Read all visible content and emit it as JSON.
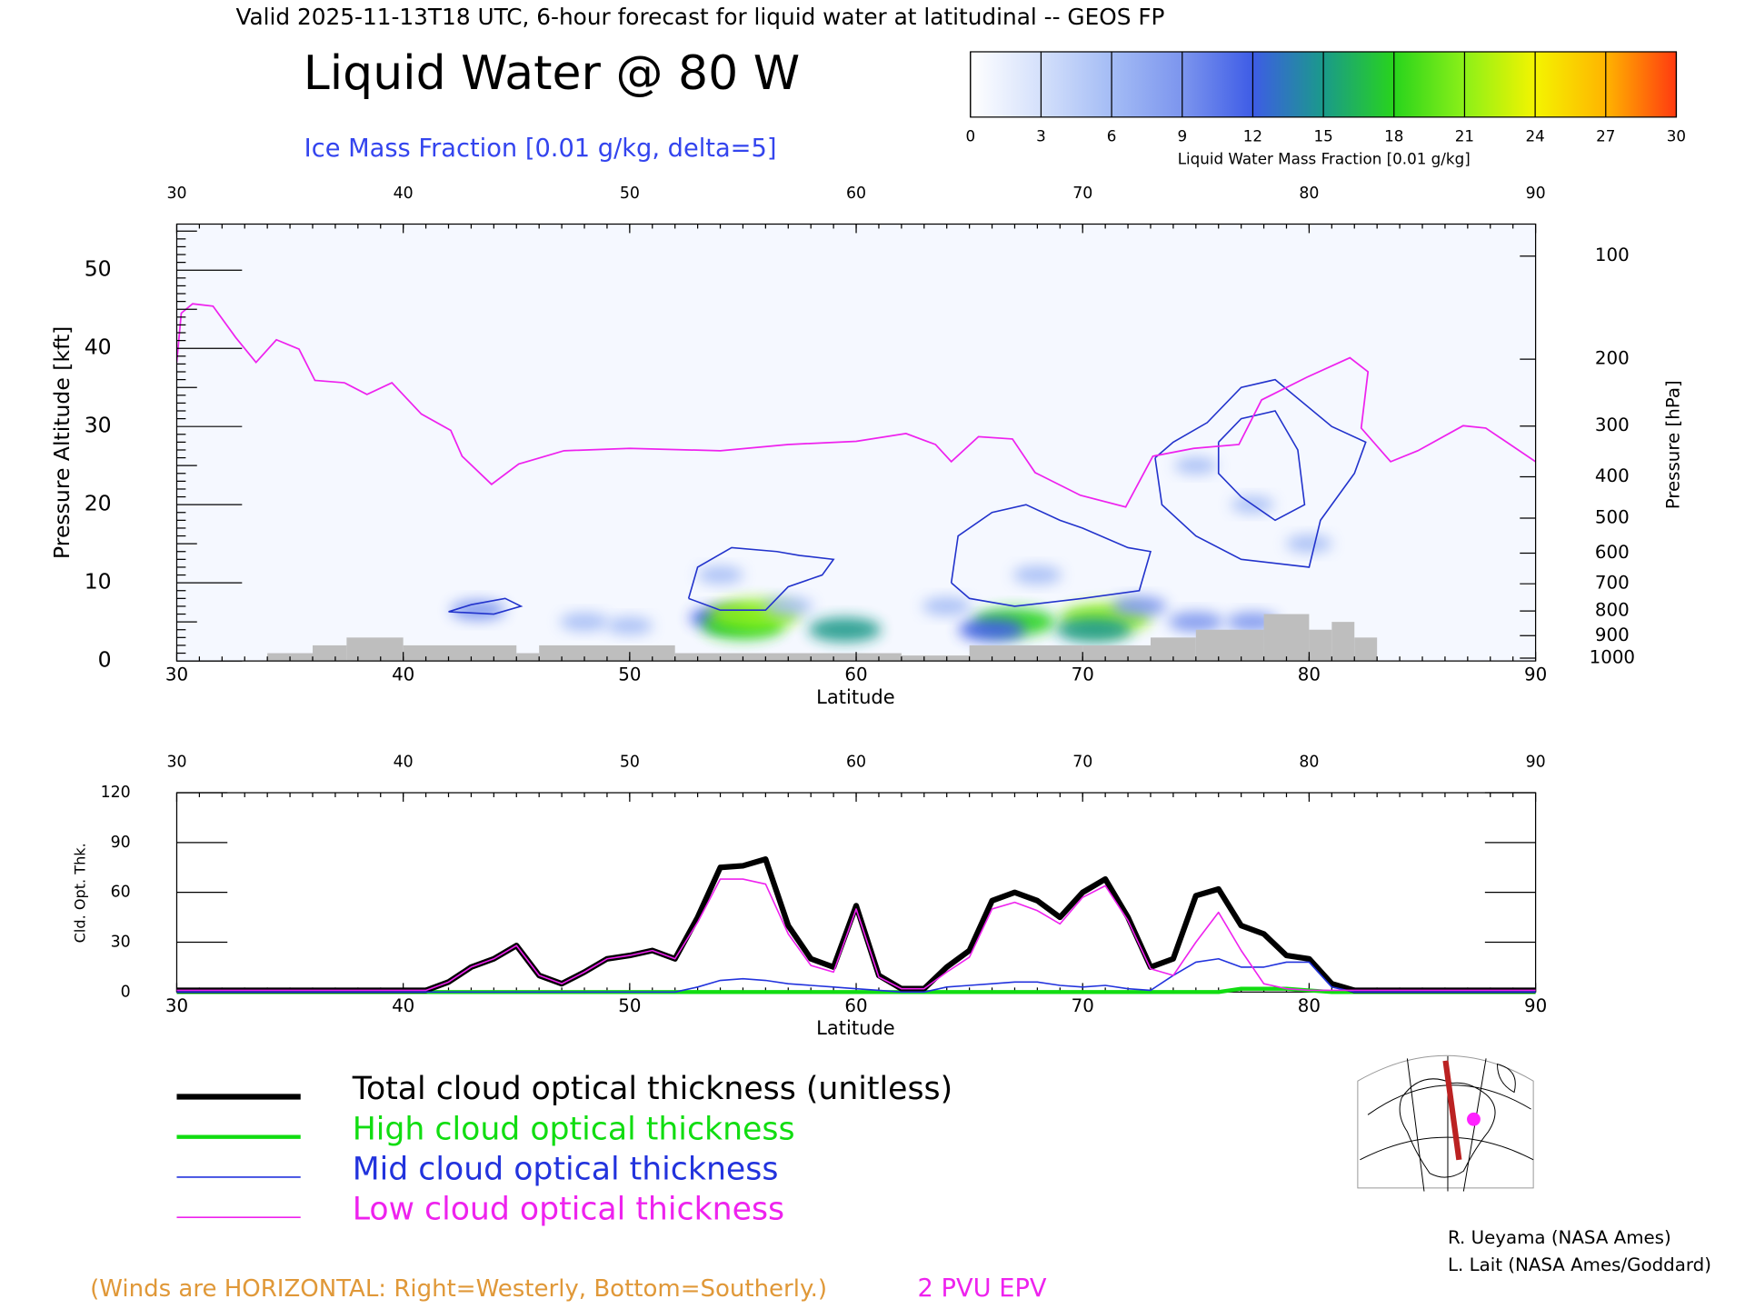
{
  "header": {
    "title": "Valid 2025-11-13T18 UTC, 6-hour forecast for liquid water at latitudinal -- GEOS FP"
  },
  "chart_data": [
    {
      "type": "cross-section",
      "title": "Liquid Water @ 80 W",
      "subtitle": "Ice Mass Fraction [0.01 g/kg, delta=5]",
      "xlabel": "Latitude",
      "ylabel": "Pressure Altitude [kft]",
      "y2label": "Pressure [hPa]",
      "xlim": [
        30,
        90
      ],
      "xticks": [
        30,
        40,
        50,
        60,
        70,
        80,
        90
      ],
      "ylim": [
        0,
        55.9
      ],
      "yticks": [
        0,
        10,
        20,
        30,
        40,
        50
      ],
      "y2scale": "pressure-altitude",
      "y2ticks": [
        100,
        200,
        300,
        400,
        500,
        600,
        700,
        800,
        900,
        1000
      ],
      "colorbar": {
        "label": "Liquid Water Mass Fraction [0.01 g/kg]",
        "ticks": [
          0,
          3,
          6,
          9,
          12,
          15,
          18,
          21,
          24,
          27,
          30
        ],
        "colors": [
          "#ffffff",
          "#d4e0fb",
          "#a4bcf5",
          "#7c95ee",
          "#3e5ce6",
          "#1a9a8a",
          "#28d41c",
          "#8cf018",
          "#f4f400",
          "#ffb400",
          "#ff3a10"
        ]
      },
      "liquid_water": {
        "x": [
          43.3,
          48,
          50,
          54,
          55,
          55.5,
          57,
          59.5,
          54,
          67,
          66,
          68,
          71,
          70.5,
          72.5,
          75,
          77.5,
          77.5,
          75,
          80,
          64
        ],
        "y": [
          6.5,
          5,
          4.5,
          5.5,
          4.5,
          6,
          7,
          4,
          11,
          5,
          4,
          11,
          5.5,
          4,
          7,
          5,
          5,
          20,
          25,
          15,
          7
        ],
        "values": [
          8,
          6,
          5,
          10,
          17,
          20,
          6,
          14,
          5,
          17,
          12,
          6,
          20,
          15,
          8,
          8,
          7,
          4,
          4,
          5,
          6
        ]
      },
      "ice_color": "#2233cc",
      "ice_contours": [
        {
          "x": [
            52.6,
            53,
            54.5,
            56.5,
            57.5,
            59,
            58.5,
            57,
            56,
            54,
            52.6
          ],
          "y": [
            8,
            12,
            14.5,
            14,
            13.5,
            13,
            11,
            9.5,
            6.5,
            6.5,
            8
          ]
        },
        {
          "x": [
            64.2,
            64.5,
            66,
            67.5,
            69,
            70,
            72,
            73,
            72.5,
            70,
            67,
            65,
            64.2
          ],
          "y": [
            10,
            16,
            19,
            20,
            18,
            17,
            14.5,
            14,
            9,
            8,
            7,
            8,
            10
          ]
        },
        {
          "x": [
            73.2,
            74,
            75.5,
            77,
            78.5,
            81,
            82.5,
            82,
            80.5,
            80,
            77,
            75,
            73.5,
            73.2
          ],
          "y": [
            26,
            28,
            30.5,
            35,
            36,
            30,
            28,
            24,
            18,
            12,
            13,
            16,
            20,
            26
          ]
        },
        {
          "x": [
            76,
            77,
            78.5,
            79.5,
            79.8,
            78.5,
            77,
            76,
            76
          ],
          "y": [
            28,
            31,
            32,
            27,
            20,
            18,
            21,
            24,
            28
          ]
        },
        {
          "x": [
            42,
            43,
            44.5,
            45.2,
            44,
            42
          ],
          "y": [
            6.3,
            7.2,
            8,
            7,
            6,
            6.3
          ]
        }
      ],
      "terrain": {
        "color": "#bebebe",
        "bins": [
          34,
          36,
          37.5,
          40,
          45,
          46,
          52,
          62,
          65,
          70,
          73,
          75,
          78,
          80,
          81,
          82,
          83
        ],
        "values": [
          1,
          2,
          3,
          2,
          1,
          2,
          1,
          0.7,
          2,
          2,
          3,
          4,
          6,
          4,
          5,
          3
        ]
      },
      "epv": {
        "name": "2 PVU EPV",
        "color": "#ee22ee",
        "x": [
          30,
          30.2,
          30.7,
          31.6,
          32.6,
          33.5,
          34.4,
          35.4,
          36.1,
          37.4,
          38.4,
          39.5,
          40.8,
          42.1,
          42.6,
          43.9,
          45.1,
          47.1,
          50,
          54,
          57,
          60,
          62.2,
          63.5,
          64.2,
          65.4,
          66.9,
          67.9,
          69.9,
          71.9,
          73.1,
          74.9,
          76.9,
          77.9,
          79.9,
          81.8,
          82.6,
          82.3,
          83.6,
          84.8,
          86.8,
          87.8,
          90
        ],
        "y": [
          38.2,
          44.5,
          45.7,
          45.4,
          41.4,
          38.2,
          41.1,
          39.9,
          35.9,
          35.6,
          34.1,
          35.6,
          31.6,
          29.5,
          26.2,
          22.6,
          25.2,
          26.9,
          27.2,
          26.9,
          27.7,
          28.1,
          29.1,
          27.7,
          25.5,
          28.7,
          28.4,
          24.1,
          21.2,
          19.7,
          26.2,
          27.2,
          27.7,
          33.4,
          36.3,
          38.8,
          37,
          29.8,
          25.5,
          26.9,
          30.1,
          29.8,
          25.5
        ]
      }
    },
    {
      "type": "line",
      "xlabel": "Latitude",
      "ylabel": "Cld. Opt. Thk.",
      "xlim": [
        30,
        90
      ],
      "xticks": [
        30,
        40,
        50,
        60,
        70,
        80,
        90
      ],
      "ylim": [
        0,
        120
      ],
      "yticks": [
        0,
        30,
        60,
        90,
        120
      ],
      "x": [
        30,
        31,
        32,
        33,
        34,
        35,
        36,
        37,
        38,
        39,
        40,
        41,
        42,
        43,
        44,
        45,
        46,
        47,
        48,
        49,
        50,
        51,
        52,
        53,
        54,
        55,
        56,
        57,
        58,
        59,
        60,
        61,
        62,
        63,
        64,
        65,
        66,
        67,
        68,
        69,
        70,
        71,
        72,
        73,
        74,
        75,
        76,
        77,
        78,
        79,
        80,
        81,
        82,
        83,
        84,
        85,
        86,
        87,
        88,
        89,
        90
      ],
      "series": [
        {
          "name": "Total cloud optical thickness (unitless)",
          "color": "#000000",
          "width": 5,
          "values": [
            1,
            1,
            1,
            1,
            1,
            1,
            1,
            1,
            1,
            1,
            1,
            1,
            6,
            15,
            20,
            28,
            10,
            5,
            12,
            20,
            22,
            25,
            20,
            45,
            75,
            76,
            80,
            40,
            20,
            15,
            52,
            10,
            2,
            2,
            15,
            25,
            55,
            60,
            55,
            45,
            60,
            68,
            45,
            15,
            20,
            58,
            62,
            40,
            35,
            22,
            20,
            5,
            1,
            1,
            1,
            1,
            1,
            1,
            1,
            1,
            1
          ]
        },
        {
          "name": "High cloud optical thickness",
          "color": "#11dd11",
          "width": 3.5,
          "values": [
            0,
            0,
            0,
            0,
            0,
            0,
            0,
            0,
            0,
            0,
            0,
            0,
            0,
            0,
            0,
            0,
            0,
            0,
            0,
            0,
            0,
            0,
            0,
            0,
            0,
            0,
            0,
            0,
            0,
            0,
            0,
            0,
            0,
            0,
            0,
            0,
            0,
            0,
            0,
            0,
            0,
            0,
            0,
            0,
            0,
            0,
            0,
            2,
            2,
            2,
            1,
            0,
            0,
            0,
            0,
            0,
            0,
            0,
            0,
            0,
            0
          ]
        },
        {
          "name": "Mid cloud optical thickness",
          "color": "#2233dd",
          "width": 1.3,
          "values": [
            0,
            0,
            0,
            0,
            0,
            0,
            0,
            0,
            0,
            0,
            0,
            0,
            0,
            0,
            0,
            0,
            0,
            0,
            0,
            0,
            0,
            0,
            0,
            3,
            7,
            8,
            7,
            5,
            4,
            3,
            2,
            1,
            0,
            0,
            3,
            4,
            5,
            6,
            6,
            4,
            3,
            4,
            2,
            1,
            10,
            18,
            20,
            15,
            15,
            18,
            18,
            3,
            0,
            0,
            0,
            0,
            0,
            0,
            0,
            0,
            0
          ]
        },
        {
          "name": "Low cloud optical thickness",
          "color": "#ee22ee",
          "width": 1.3,
          "values": [
            1,
            1,
            1,
            1,
            1,
            1,
            1,
            1,
            1,
            1,
            1,
            1,
            6,
            15,
            20,
            28,
            10,
            5,
            12,
            20,
            22,
            25,
            20,
            42,
            68,
            68,
            65,
            35,
            16,
            12,
            50,
            9,
            2,
            2,
            12,
            21,
            50,
            54,
            49,
            41,
            57,
            64,
            43,
            14,
            10,
            30,
            48,
            25,
            5,
            2,
            1,
            1,
            1,
            1,
            1,
            1,
            1,
            1,
            1,
            1,
            1
          ]
        }
      ]
    }
  ],
  "footer": {
    "winds_note": "(Winds are HORIZONTAL: Right=Westerly, Bottom=Southerly.)",
    "credits": [
      "R. Ueyama (NASA Ames)",
      "L. Lait (NASA Ames/Goddard)"
    ]
  }
}
